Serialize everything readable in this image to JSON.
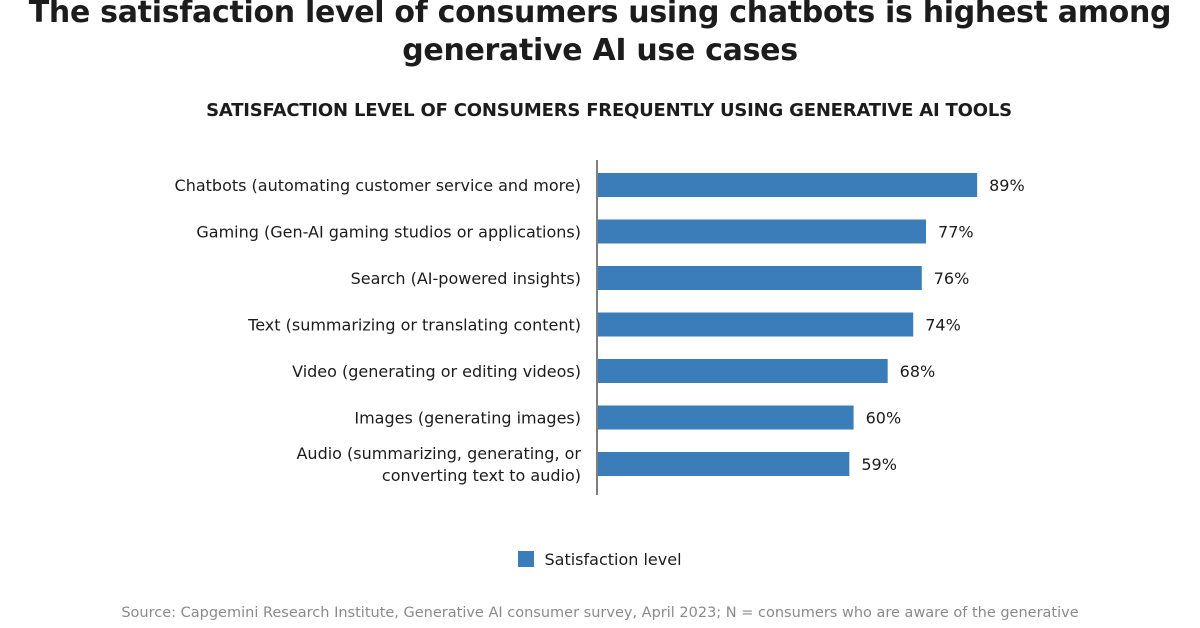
{
  "colors": {
    "bar": "#3a7db8",
    "axis": "#555555"
  },
  "chart_data": {
    "type": "bar",
    "orientation": "horizontal",
    "title": "The satisfaction level of consumers using chatbots is highest among generative AI use cases",
    "subtitle": "SATISFACTION LEVEL OF CONSUMERS FREQUENTLY USING GENERATIVE AI TOOLS",
    "categories": [
      [
        "Chatbots (automating customer service and more)"
      ],
      [
        "Gaming (Gen-AI gaming studios or applications)"
      ],
      [
        "Search (AI-powered insights)"
      ],
      [
        "Text (summarizing or translating content)"
      ],
      [
        "Video (generating or editing videos)"
      ],
      [
        "Images (generating images)"
      ],
      [
        "Audio (summarizing, generating, or",
        "converting text to audio)"
      ]
    ],
    "series": [
      {
        "name": "Satisfaction level",
        "values": [
          89,
          77,
          76,
          74,
          68,
          60,
          59
        ]
      }
    ],
    "value_labels": [
      "89%",
      "77%",
      "76%",
      "74%",
      "68%",
      "60%",
      "59%"
    ],
    "xlim": [
      0,
      100
    ],
    "grid": false,
    "legend": "bottom-center"
  },
  "source": "Source: Capgemini Research Institute, Generative AI consumer survey, April 2023; N = consumers who are aware of the generative"
}
